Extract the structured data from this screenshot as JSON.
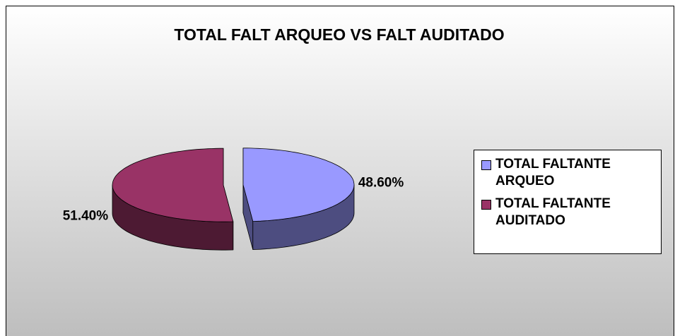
{
  "chart_data": {
    "type": "pie",
    "title": "TOTAL FALT ARQUEO VS FALT AUDITADO",
    "categories": [
      "TOTAL FALTANTE ARQUEO",
      "TOTAL FALTANTE AUDITADO"
    ],
    "values": [
      48.6,
      51.4
    ],
    "value_labels": [
      "48.60%",
      "51.40%"
    ],
    "colors": [
      "#9999ff",
      "#993366"
    ],
    "legend": "right"
  }
}
